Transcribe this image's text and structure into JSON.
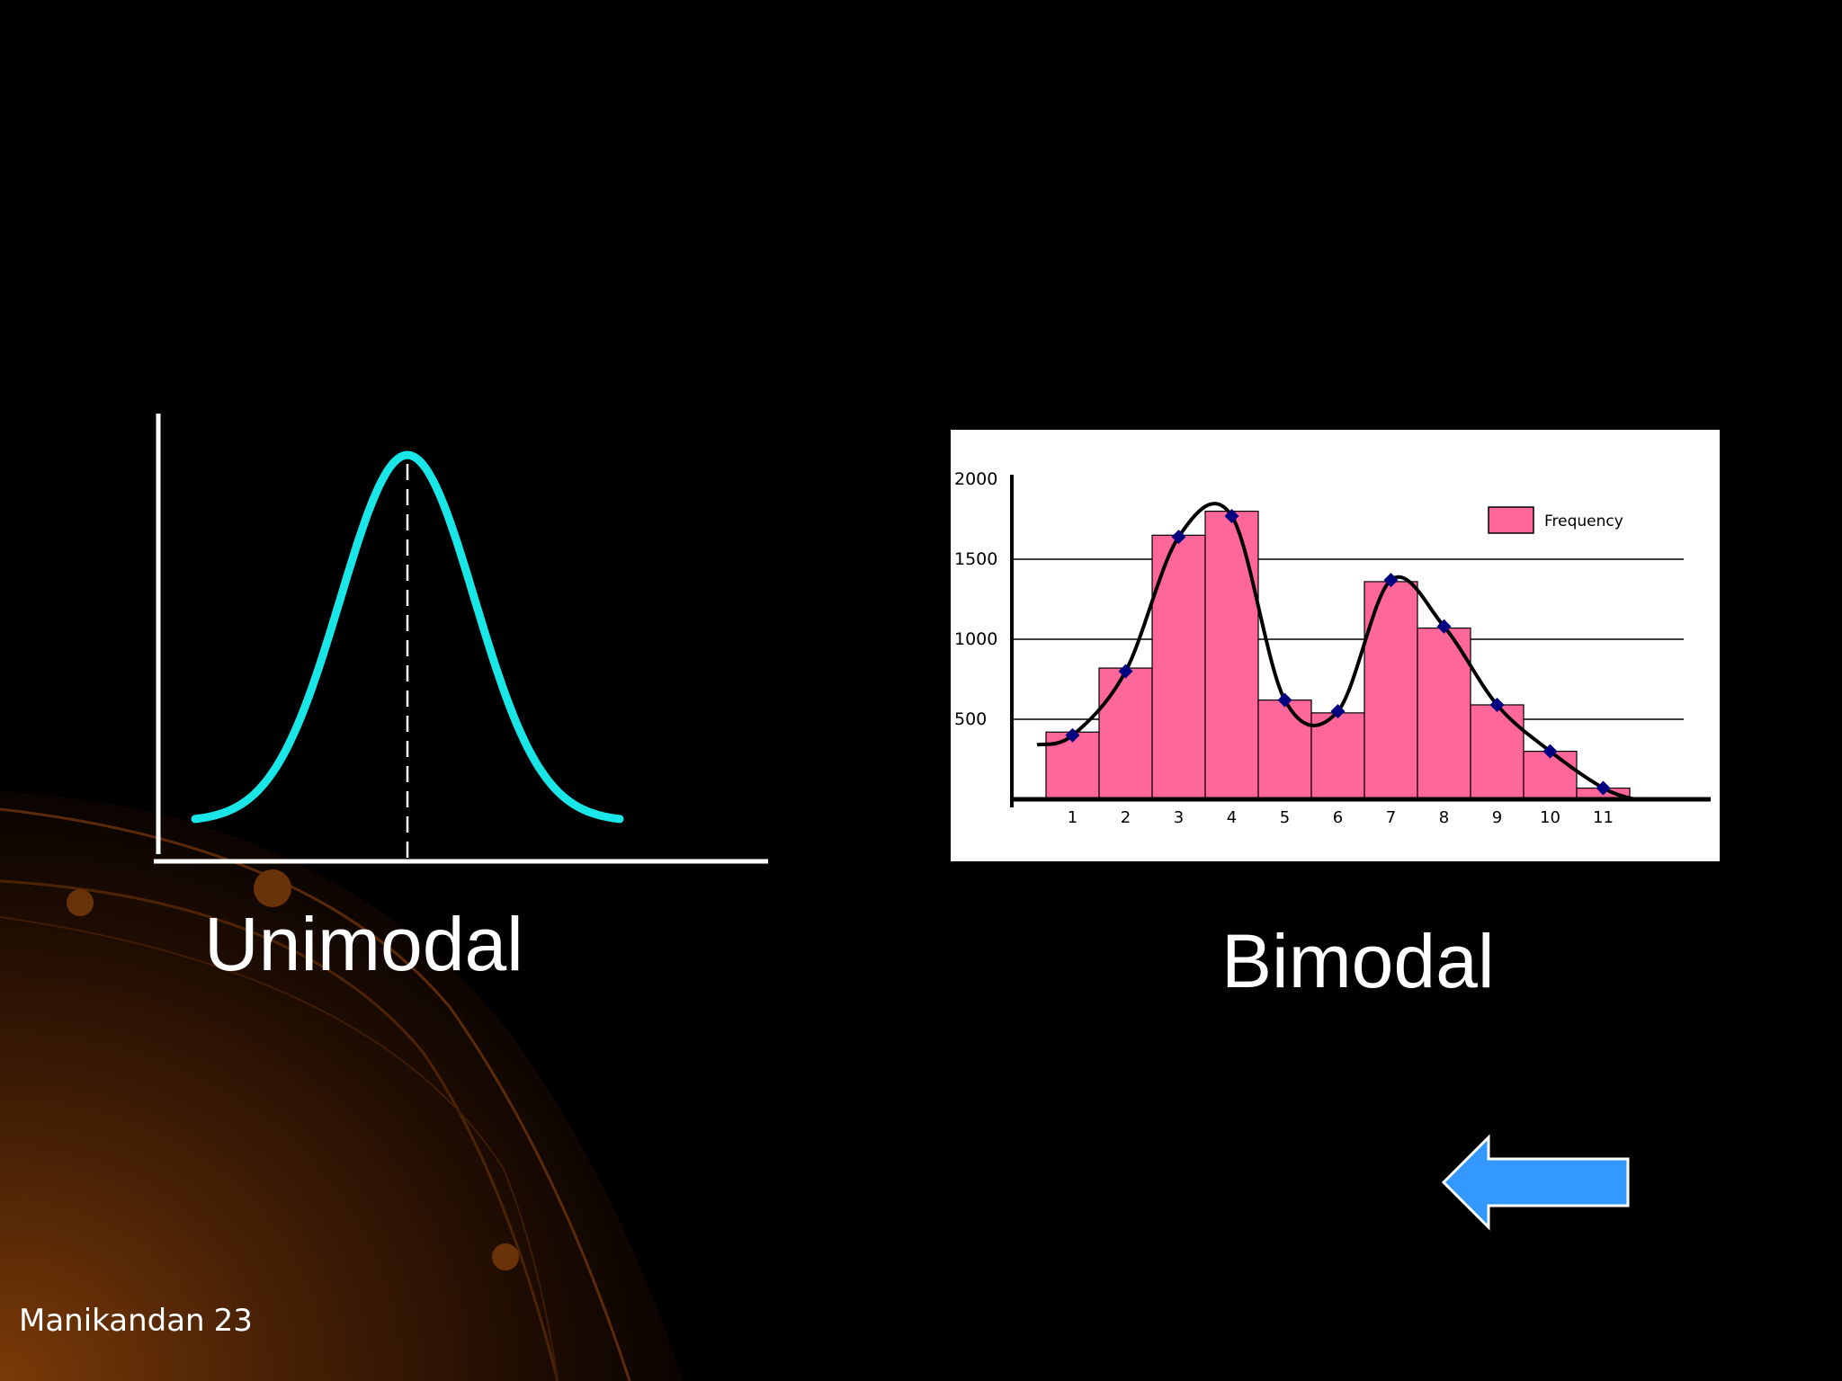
{
  "slide": {
    "footer": {
      "author": "Manikandan",
      "page_number": "23"
    },
    "colors": {
      "background": "#000000",
      "accent_orange": "#7a3a08",
      "curve_cyan": "#19e6e6",
      "arrow_blue": "#3399ff"
    },
    "nav": {
      "back_icon": "left-arrow-icon"
    }
  },
  "chart_data": [
    {
      "type": "line",
      "caption": "Unimodal",
      "description_shape": "single-peak bell curve with dashed vertical line at the peak",
      "x": [
        -3,
        -2.5,
        -2,
        -1.5,
        -1,
        -0.5,
        0,
        0.5,
        1,
        1.5,
        2,
        2.5,
        3
      ],
      "y": [
        0.02,
        0.05,
        0.11,
        0.27,
        0.52,
        0.86,
        1.0,
        0.86,
        0.52,
        0.27,
        0.11,
        0.05,
        0.02
      ],
      "peak_x": 0,
      "line_color": "#19e6e6",
      "grid": false
    },
    {
      "type": "bar",
      "caption": "Bimodal",
      "categories": [
        "1",
        "2",
        "3",
        "4",
        "5",
        "6",
        "7",
        "8",
        "9",
        "10",
        "11"
      ],
      "series": [
        {
          "name": "Frequency",
          "values": [
            420,
            820,
            1650,
            1800,
            620,
            540,
            1360,
            1070,
            590,
            300,
            70
          ],
          "color": "#ff6699"
        }
      ],
      "overlay_line": [
        400,
        800,
        1640,
        1770,
        620,
        550,
        1370,
        1080,
        590,
        300,
        70
      ],
      "yticks": [
        "500",
        "1000",
        "1500",
        "2000"
      ],
      "ylim": [
        0,
        2000
      ],
      "grid": true,
      "legend": "top-right"
    }
  ]
}
